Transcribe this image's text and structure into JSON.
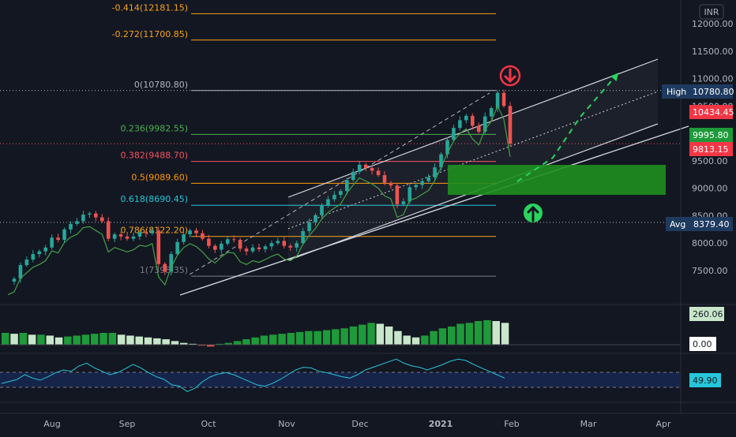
{
  "chart_data": [
    {
      "type": "candlestick",
      "currency": "INR",
      "x_ticks": [
        "Aug",
        "Sep",
        "Oct",
        "Nov",
        "Dec",
        "2021",
        "Feb",
        "Mar",
        "Apr"
      ],
      "y_ticks": [
        "12000.00",
        "11500.00",
        "11000.00",
        "10500.00",
        "10000.00",
        "9500.00",
        "9000.00",
        "8500.00",
        "8000.00",
        "7500.00"
      ],
      "ylim": [
        7150,
        12300
      ],
      "grid": false,
      "price_series": [
        [
          0,
          7300
        ],
        [
          3,
          7350
        ],
        [
          6,
          7600
        ],
        [
          9,
          7700
        ],
        [
          12,
          7800
        ],
        [
          15,
          7850
        ],
        [
          18,
          7920
        ],
        [
          21,
          8100
        ],
        [
          24,
          8060
        ],
        [
          27,
          8250
        ],
        [
          30,
          8350
        ],
        [
          33,
          8400
        ],
        [
          36,
          8520
        ],
        [
          39,
          8540
        ],
        [
          42,
          8470
        ],
        [
          45,
          8400
        ],
        [
          48,
          8080
        ],
        [
          51,
          8160
        ],
        [
          54,
          8120
        ],
        [
          57,
          8080
        ],
        [
          60,
          8120
        ],
        [
          63,
          8200
        ],
        [
          66,
          8180
        ],
        [
          69,
          8230
        ],
        [
          72,
          7620
        ],
        [
          75,
          7480
        ],
        [
          78,
          7800
        ],
        [
          81,
          8020
        ],
        [
          84,
          8160
        ],
        [
          87,
          8230
        ],
        [
          90,
          8180
        ],
        [
          93,
          8080
        ],
        [
          96,
          7950
        ],
        [
          99,
          7880
        ],
        [
          102,
          7990
        ],
        [
          105,
          8070
        ],
        [
          108,
          8060
        ],
        [
          111,
          7900
        ],
        [
          114,
          7850
        ],
        [
          117,
          7920
        ],
        [
          120,
          7890
        ],
        [
          123,
          7940
        ],
        [
          126,
          8000
        ],
        [
          129,
          8040
        ],
        [
          132,
          7950
        ],
        [
          135,
          7920
        ],
        [
          138,
          8000
        ],
        [
          141,
          8220
        ],
        [
          144,
          8380
        ],
        [
          147,
          8510
        ],
        [
          150,
          8680
        ],
        [
          153,
          8800
        ],
        [
          156,
          8880
        ],
        [
          159,
          8950
        ],
        [
          162,
          9150
        ],
        [
          165,
          9300
        ],
        [
          168,
          9430
        ],
        [
          171,
          9370
        ],
        [
          174,
          9320
        ],
        [
          177,
          9240
        ],
        [
          180,
          9100
        ],
        [
          183,
          9050
        ],
        [
          186,
          8710
        ],
        [
          189,
          8760
        ],
        [
          192,
          9020
        ],
        [
          195,
          9060
        ],
        [
          198,
          9130
        ],
        [
          201,
          9200
        ],
        [
          204,
          9380
        ],
        [
          207,
          9620
        ],
        [
          210,
          9880
        ],
        [
          213,
          10100
        ],
        [
          216,
          10240
        ],
        [
          219,
          10320
        ],
        [
          222,
          10140
        ],
        [
          225,
          10030
        ],
        [
          228,
          10310
        ],
        [
          231,
          10460
        ],
        [
          234,
          10740
        ],
        [
          237,
          10500
        ],
        [
          240,
          9813
        ]
      ],
      "indicators": {
        "fibonacci": [
          {
            "label": "-0.414(12181.15)",
            "value": 12181.15,
            "color": "#f7a21b"
          },
          {
            "label": "-0.272(11700.85)",
            "value": 11700.85,
            "color": "#f7a21b"
          },
          {
            "label": "0(10780.80)",
            "value": 10780.8,
            "color": "#b2b5be"
          },
          {
            "label": "0.236(9982.55)",
            "value": 9982.55,
            "color": "#4caf50"
          },
          {
            "label": "0.382(9488.70)",
            "value": 9488.7,
            "color": "#f7525f"
          },
          {
            "label": "0.5(9089.60)",
            "value": 9089.6,
            "color": "#ff9800"
          },
          {
            "label": "0.618(8690.45)",
            "value": 8690.45,
            "color": "#26c6da"
          },
          {
            "label": "0.786(8122.20)",
            "value": 8122.2,
            "color": "#f7a21b"
          },
          {
            "label": "1(7398.35)",
            "value": 7398.35,
            "color": "#787b86"
          }
        ],
        "histogram_values": [
          130,
          120,
          130,
          110,
          110,
          100,
          80,
          90,
          100,
          110,
          120,
          130,
          130,
          110,
          100,
          90,
          80,
          70,
          60,
          40,
          20,
          10,
          -10,
          -20,
          10,
          20,
          40,
          60,
          80,
          100,
          110,
          120,
          130,
          140,
          150,
          150,
          160,
          170,
          180,
          200,
          220,
          240,
          230,
          200,
          150,
          100,
          80,
          100,
          150,
          180,
          200,
          230,
          240,
          260,
          270,
          260,
          240
        ],
        "rsi": [
          42,
          45,
          48,
          55,
          50,
          47,
          52,
          58,
          62,
          60,
          68,
          72,
          65,
          60,
          55,
          58,
          64,
          70,
          65,
          58,
          52,
          48,
          40,
          38,
          30,
          35,
          45,
          52,
          56,
          58,
          55,
          50,
          45,
          40,
          38,
          42,
          48,
          55,
          62,
          66,
          65,
          60,
          58,
          55,
          52,
          50,
          55,
          62,
          66,
          70,
          74,
          78,
          72,
          68,
          66,
          62,
          66,
          70,
          75,
          78,
          76,
          70,
          65,
          60,
          55,
          50
        ]
      },
      "badges": {
        "high_label": "High",
        "high_value": "10780.80",
        "price_red": "10434.45",
        "price_green": "9995.80",
        "last_price": "9813.15",
        "avg_label": "Avg",
        "avg_value": "8379.40",
        "histogram_value": "260.06",
        "zero_value": "0.00",
        "rsi_value": "49.90"
      }
    }
  ]
}
